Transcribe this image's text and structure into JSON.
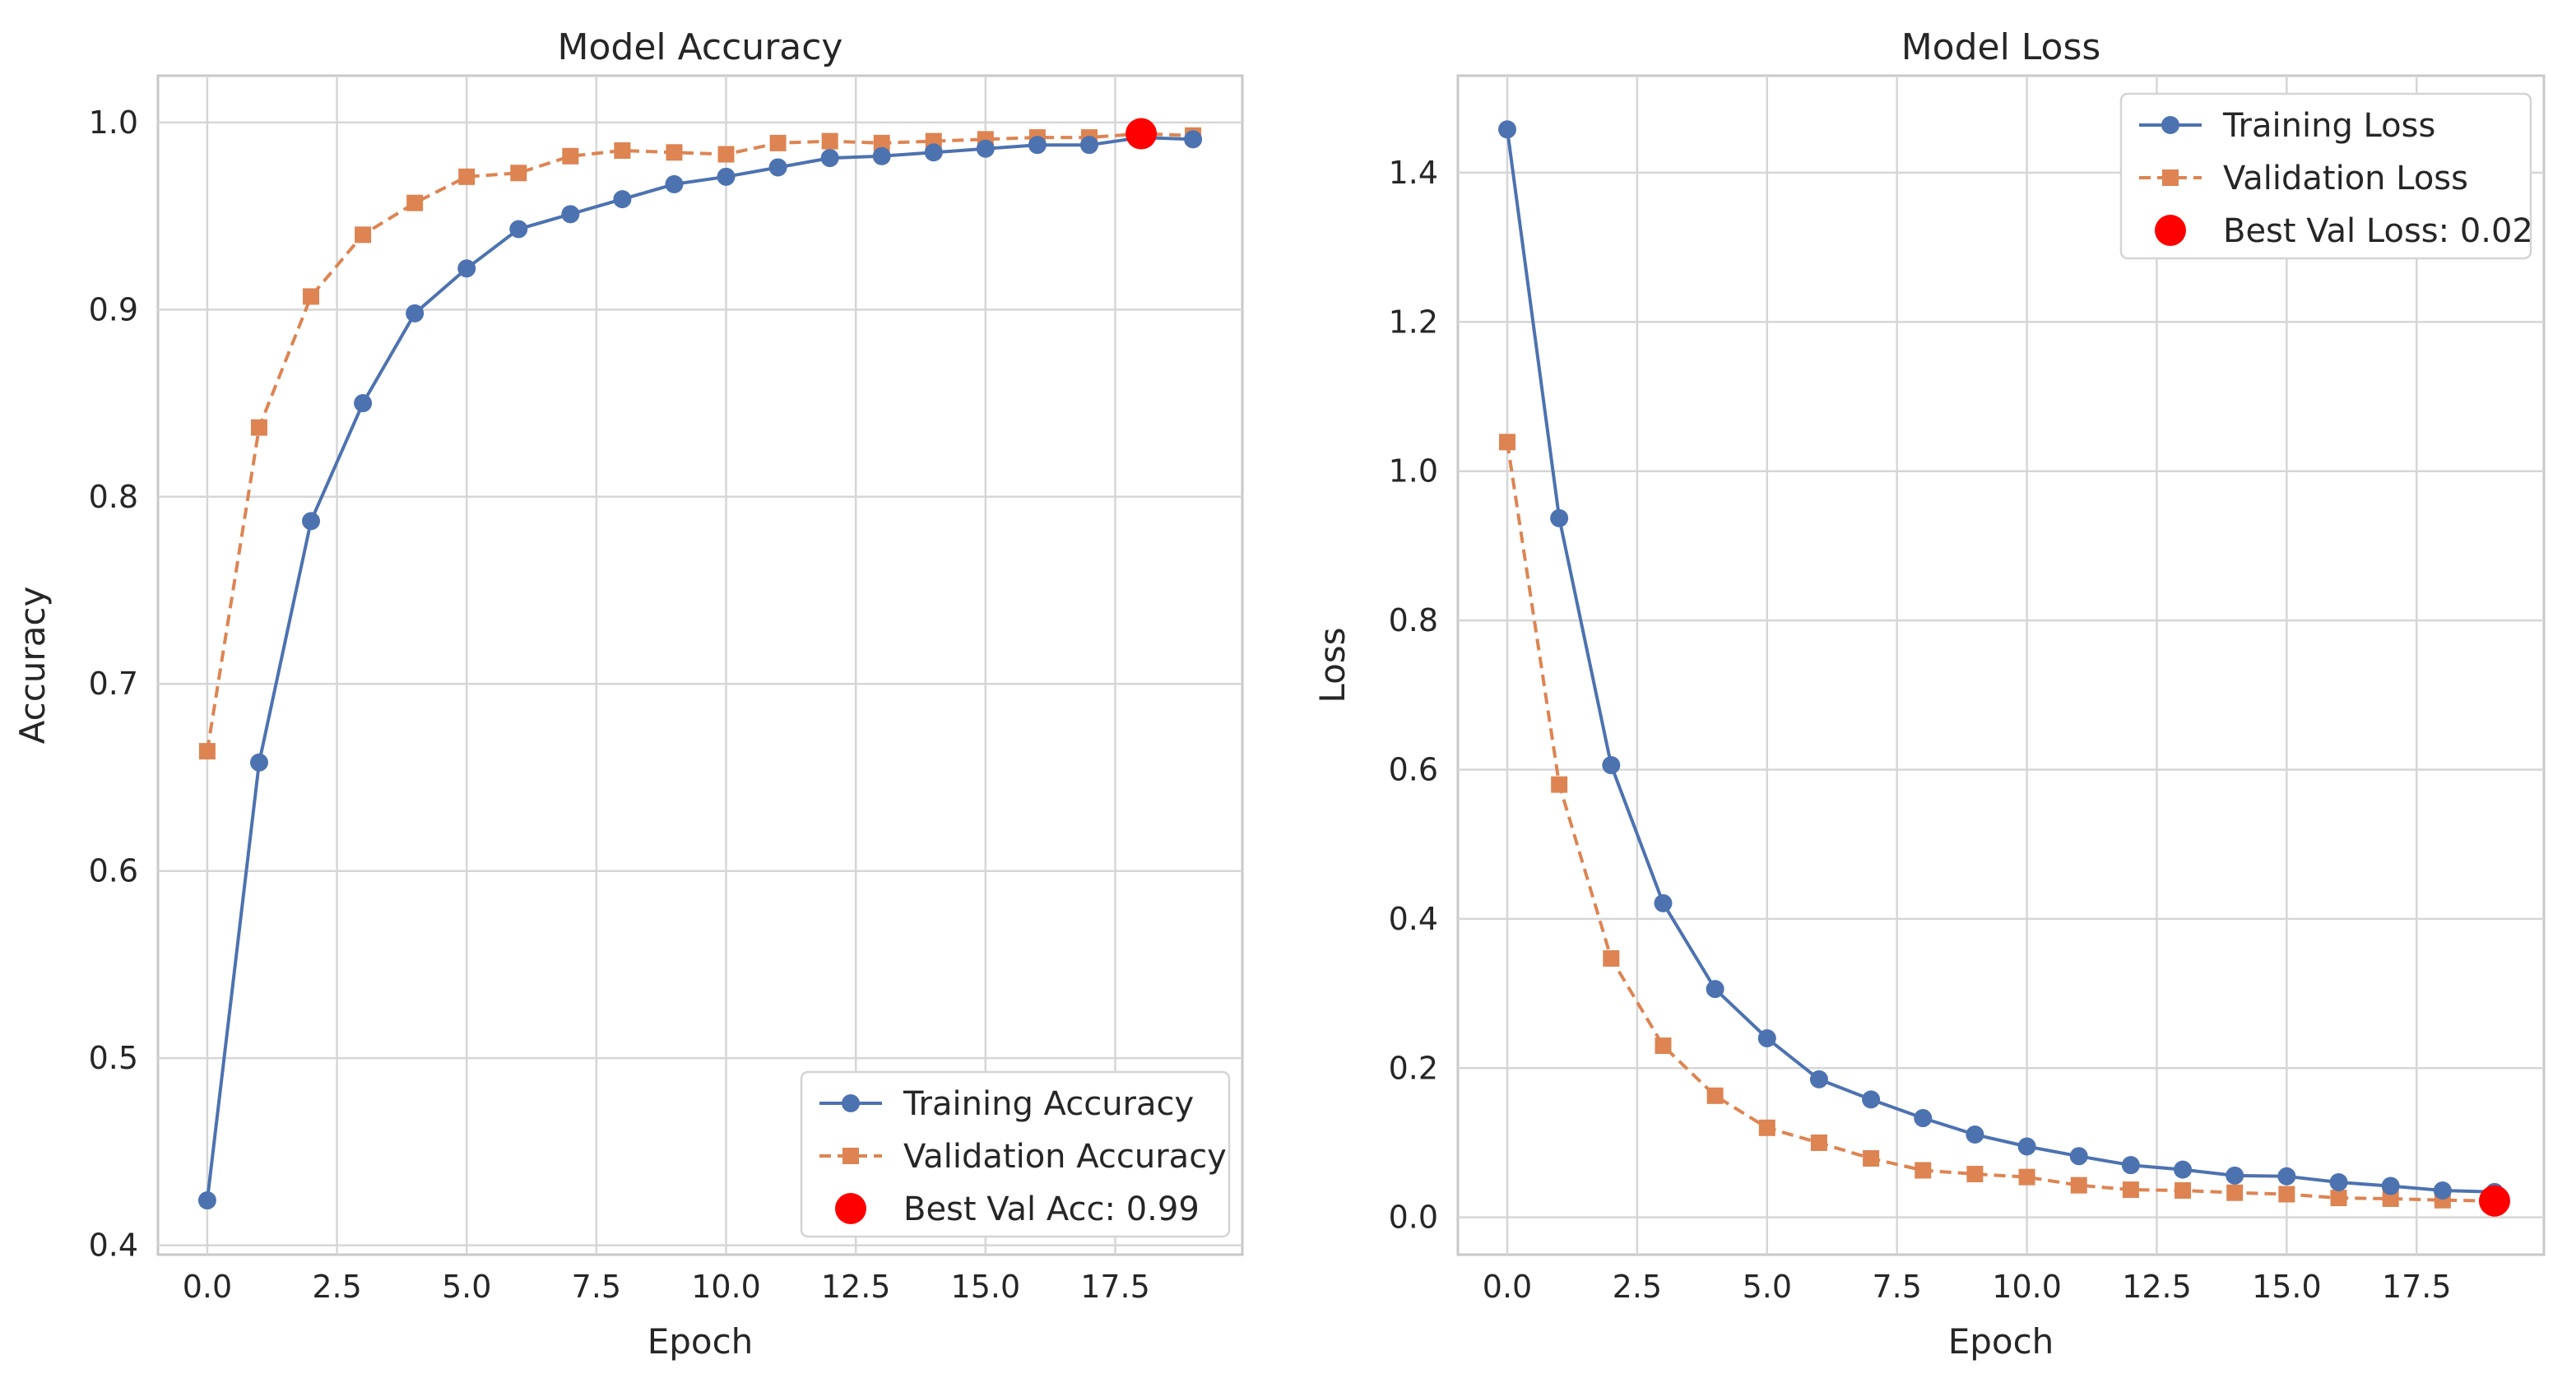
{
  "chart_data": [
    {
      "type": "line",
      "title": "Model Accuracy",
      "xlabel": "Epoch",
      "ylabel": "Accuracy",
      "xlim": [
        -0.95,
        19.95
      ],
      "ylim": [
        0.395,
        1.025
      ],
      "xticks": [
        0,
        2.5,
        5,
        7.5,
        10,
        12.5,
        15,
        17.5
      ],
      "xtick_labels": [
        "0.0",
        "2.5",
        "5.0",
        "7.5",
        "10.0",
        "12.5",
        "15.0",
        "17.5"
      ],
      "yticks": [
        0.4,
        0.5,
        0.6,
        0.7,
        0.8,
        0.9,
        1.0
      ],
      "ytick_labels": [
        "0.4",
        "0.5",
        "0.6",
        "0.7",
        "0.8",
        "0.9",
        "1.0"
      ],
      "grid": true,
      "legend_position": "bottom-right",
      "x": [
        0,
        1,
        2,
        3,
        4,
        5,
        6,
        7,
        8,
        9,
        10,
        11,
        12,
        13,
        14,
        15,
        16,
        17,
        18,
        19
      ],
      "series": [
        {
          "name": "Training Accuracy",
          "color": "#4c72b0",
          "linestyle": "solid",
          "marker": "circle",
          "values": [
            0.424,
            0.658,
            0.787,
            0.85,
            0.898,
            0.922,
            0.943,
            0.951,
            0.959,
            0.967,
            0.971,
            0.976,
            0.981,
            0.982,
            0.984,
            0.986,
            0.988,
            0.988,
            0.992,
            0.991
          ]
        },
        {
          "name": "Validation Accuracy",
          "color": "#dd8452",
          "linestyle": "dashed",
          "marker": "square",
          "values": [
            0.664,
            0.837,
            0.907,
            0.94,
            0.957,
            0.971,
            0.973,
            0.982,
            0.985,
            0.984,
            0.983,
            0.989,
            0.99,
            0.989,
            0.99,
            0.991,
            0.992,
            0.992,
            0.994,
            0.993
          ]
        }
      ],
      "best_point": {
        "label": "Best Val Acc: 0.99",
        "x": 18,
        "y": 0.994,
        "color": "#ff0000"
      }
    },
    {
      "type": "line",
      "title": "Model Loss",
      "xlabel": "Epoch",
      "ylabel": "Loss",
      "xlim": [
        -0.95,
        19.95
      ],
      "ylim": [
        -0.05,
        1.53
      ],
      "xticks": [
        0,
        2.5,
        5,
        7.5,
        10,
        12.5,
        15,
        17.5
      ],
      "xtick_labels": [
        "0.0",
        "2.5",
        "5.0",
        "7.5",
        "10.0",
        "12.5",
        "15.0",
        "17.5"
      ],
      "yticks": [
        0.0,
        0.2,
        0.4,
        0.6,
        0.8,
        1.0,
        1.2,
        1.4
      ],
      "ytick_labels": [
        "0.0",
        "0.2",
        "0.4",
        "0.6",
        "0.8",
        "1.0",
        "1.2",
        "1.4"
      ],
      "grid": true,
      "legend_position": "top-right",
      "x": [
        0,
        1,
        2,
        3,
        4,
        5,
        6,
        7,
        8,
        9,
        10,
        11,
        12,
        13,
        14,
        15,
        16,
        17,
        18,
        19
      ],
      "series": [
        {
          "name": "Training Loss",
          "color": "#4c72b0",
          "linestyle": "solid",
          "marker": "circle",
          "values": [
            1.458,
            0.937,
            0.606,
            0.421,
            0.306,
            0.24,
            0.185,
            0.158,
            0.133,
            0.111,
            0.095,
            0.082,
            0.07,
            0.064,
            0.056,
            0.055,
            0.047,
            0.042,
            0.036,
            0.034
          ]
        },
        {
          "name": "Validation Loss",
          "color": "#dd8452",
          "linestyle": "dashed",
          "marker": "square",
          "values": [
            1.039,
            0.58,
            0.347,
            0.23,
            0.163,
            0.12,
            0.1,
            0.079,
            0.063,
            0.058,
            0.054,
            0.043,
            0.037,
            0.036,
            0.033,
            0.031,
            0.026,
            0.025,
            0.023,
            0.022
          ]
        }
      ],
      "best_point": {
        "label": "Best Val Loss: 0.02",
        "x": 19,
        "y": 0.022,
        "color": "#ff0000"
      }
    }
  ]
}
